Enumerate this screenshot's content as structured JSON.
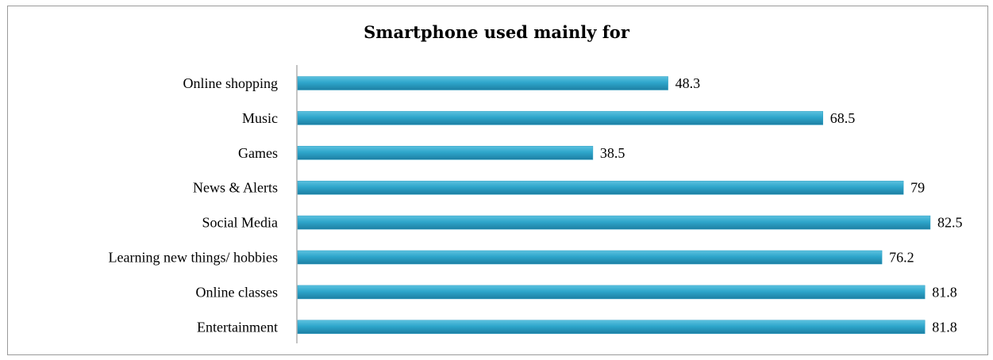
{
  "chart_data": {
    "type": "bar",
    "orientation": "horizontal",
    "title": "Smartphone used mainly for",
    "categories": [
      "Online shopping",
      "Music",
      "Games",
      "News & Alerts",
      "Social Media",
      "Learning new things/ hobbies",
      "Online classes",
      "Entertainment"
    ],
    "values": [
      48.3,
      68.5,
      38.5,
      79,
      82.5,
      76.2,
      81.8,
      81.8
    ],
    "value_labels": [
      "48.3",
      "68.5",
      "38.5",
      "79",
      "82.5",
      "76.2",
      "81.8",
      "81.8"
    ],
    "xlabel": "",
    "ylabel": "",
    "xlim": [
      0,
      100
    ],
    "grid": false,
    "legend": "none",
    "bar_color": "#2e9fc4"
  }
}
